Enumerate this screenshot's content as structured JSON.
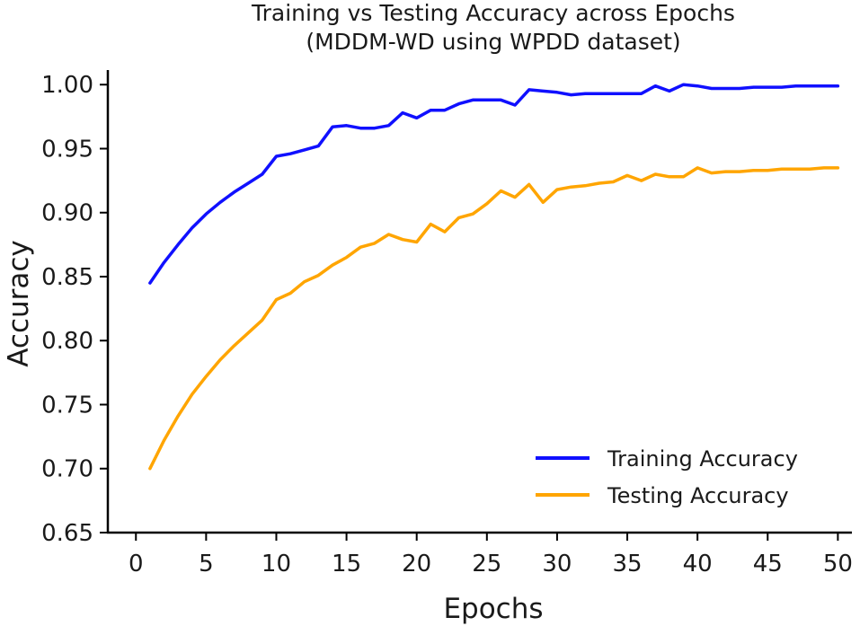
{
  "chart_data": {
    "type": "line",
    "title": [
      "Training vs Testing Accuracy across Epochs",
      "(MDDM-WD using WPDD dataset)"
    ],
    "xlabel": "Epochs",
    "ylabel": "Accuracy",
    "xlim": [
      -2,
      51
    ],
    "ylim": [
      0.65,
      1.0114
    ],
    "xticks": [
      0,
      5,
      10,
      15,
      20,
      25,
      30,
      35,
      40,
      45,
      50
    ],
    "xtick_labels": [
      "0",
      "5",
      "10",
      "15",
      "20",
      "25",
      "30",
      "35",
      "40",
      "45",
      "50"
    ],
    "yticks": [
      0.65,
      0.7,
      0.75,
      0.8,
      0.85,
      0.9,
      0.95,
      1.0
    ],
    "ytick_labels": [
      "0.65",
      "0.70",
      "0.75",
      "0.80",
      "0.85",
      "0.90",
      "0.95",
      "1.00"
    ],
    "grid": false,
    "legend_position": "lower-right",
    "x": [
      1,
      2,
      3,
      4,
      5,
      6,
      7,
      8,
      9,
      10,
      11,
      12,
      13,
      14,
      15,
      16,
      17,
      18,
      19,
      20,
      21,
      22,
      23,
      24,
      25,
      26,
      27,
      28,
      29,
      30,
      31,
      32,
      33,
      34,
      35,
      36,
      37,
      38,
      39,
      40,
      41,
      42,
      43,
      44,
      45,
      46,
      47,
      48,
      49,
      50
    ],
    "series": [
      {
        "name": "Training Accuracy",
        "color": "#1010ff",
        "values": [
          0.845,
          0.861,
          0.875,
          0.888,
          0.899,
          0.908,
          0.916,
          0.923,
          0.93,
          0.944,
          0.946,
          0.949,
          0.952,
          0.967,
          0.968,
          0.966,
          0.966,
          0.968,
          0.978,
          0.974,
          0.98,
          0.98,
          0.985,
          0.988,
          0.988,
          0.988,
          0.984,
          0.996,
          0.995,
          0.994,
          0.992,
          0.993,
          0.993,
          0.993,
          0.993,
          0.993,
          0.999,
          0.995,
          1.0,
          0.999,
          0.997,
          0.997,
          0.997,
          0.998,
          0.998,
          0.998,
          0.999,
          0.999,
          0.999,
          0.999
        ]
      },
      {
        "name": "Testing Accuracy",
        "color": "#ffa500",
        "values": [
          0.7,
          0.722,
          0.741,
          0.758,
          0.772,
          0.785,
          0.796,
          0.806,
          0.816,
          0.832,
          0.837,
          0.846,
          0.851,
          0.859,
          0.865,
          0.873,
          0.876,
          0.883,
          0.879,
          0.877,
          0.891,
          0.885,
          0.896,
          0.899,
          0.907,
          0.917,
          0.912,
          0.922,
          0.908,
          0.918,
          0.92,
          0.921,
          0.923,
          0.924,
          0.929,
          0.925,
          0.93,
          0.928,
          0.928,
          0.935,
          0.931,
          0.932,
          0.932,
          0.933,
          0.933,
          0.934,
          0.934,
          0.934,
          0.935,
          0.935
        ]
      }
    ]
  }
}
